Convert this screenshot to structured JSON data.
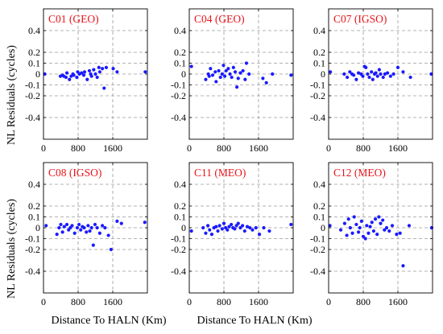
{
  "figure": {
    "ylabel": "NL Residuals (cycles)",
    "xlabel": "Distance To HALN (Km)"
  },
  "style": {
    "title_color": "#e8141a",
    "point_color": "#1a1aff",
    "grid_color": "#9a9a9a",
    "axis_color": "#000000"
  },
  "chart_data": [
    {
      "type": "scatter",
      "title": "C01 (GEO)",
      "xlim": [
        0,
        2400
      ],
      "ylim": [
        -0.6,
        0.6
      ],
      "xticks": [
        0,
        800,
        1600
      ],
      "yticks": [
        0.4,
        0.2,
        0.1,
        0,
        -0.1,
        -0.2,
        -0.4
      ],
      "grid": true,
      "x": [
        30,
        390,
        440,
        470,
        520,
        540,
        600,
        640,
        680,
        700,
        770,
        790,
        830,
        880,
        930,
        950,
        1010,
        1060,
        1090,
        1110,
        1160,
        1200,
        1240,
        1280,
        1300,
        1360,
        1400,
        1450,
        1610,
        1700,
        2350
      ],
      "y": [
        0.0,
        -0.02,
        -0.01,
        -0.02,
        -0.03,
        0.01,
        -0.05,
        -0.02,
        0.0,
        -0.01,
        -0.03,
        0.02,
        0.0,
        0.01,
        -0.01,
        0.02,
        -0.05,
        0.03,
        0.0,
        -0.02,
        0.04,
        0.0,
        -0.03,
        0.06,
        0.02,
        0.05,
        -0.13,
        0.06,
        0.05,
        0.02,
        0.02
      ]
    },
    {
      "type": "scatter",
      "title": "C04 (GEO)",
      "xlim": [
        0,
        2400
      ],
      "ylim": [
        -0.6,
        0.6
      ],
      "xticks": [
        0,
        800,
        1600
      ],
      "yticks": [
        0.4,
        0.2,
        0.1,
        0,
        -0.1,
        -0.2,
        -0.4
      ],
      "grid": true,
      "x": [
        50,
        380,
        440,
        460,
        490,
        540,
        600,
        620,
        680,
        720,
        760,
        790,
        820,
        850,
        900,
        940,
        980,
        1020,
        1060,
        1100,
        1130,
        1180,
        1240,
        1290,
        1320,
        1380,
        1700,
        1780,
        1920,
        2350
      ],
      "y": [
        0.07,
        -0.05,
        0.0,
        -0.02,
        0.05,
        -0.01,
        0.02,
        -0.07,
        0.03,
        -0.03,
        0.0,
        0.08,
        -0.02,
        0.03,
        0.05,
        0.0,
        -0.03,
        0.06,
        0.02,
        -0.12,
        -0.04,
        0.01,
        0.03,
        -0.05,
        0.1,
        0.0,
        -0.04,
        -0.08,
        0.0,
        -0.01
      ]
    },
    {
      "type": "scatter",
      "title": "C07 (IGSO)",
      "xlim": [
        0,
        2400
      ],
      "ylim": [
        -0.6,
        0.6
      ],
      "xticks": [
        0,
        800,
        1600
      ],
      "yticks": [
        0.4,
        0.2,
        0.1,
        0,
        -0.1,
        -0.2,
        -0.4
      ],
      "grid": true,
      "x": [
        40,
        360,
        430,
        490,
        540,
        580,
        640,
        690,
        750,
        790,
        830,
        860,
        900,
        940,
        990,
        1020,
        1060,
        1090,
        1130,
        1170,
        1200,
        1260,
        1300,
        1360,
        1430,
        1500,
        1600,
        1720,
        1890,
        2370
      ],
      "y": [
        0.02,
        0.0,
        -0.03,
        0.02,
        0.0,
        -0.01,
        -0.05,
        0.01,
        0.0,
        -0.02,
        0.07,
        0.06,
        0.0,
        -0.03,
        0.02,
        -0.05,
        0.0,
        0.01,
        -0.02,
        0.04,
        0.0,
        -0.03,
        0.0,
        0.01,
        -0.02,
        0.0,
        0.06,
        0.02,
        -0.03,
        0.0
      ]
    },
    {
      "type": "scatter",
      "title": "C08 (IGSO)",
      "xlim": [
        0,
        2400
      ],
      "ylim": [
        -0.6,
        0.6
      ],
      "xticks": [
        0,
        800,
        1600
      ],
      "yticks": [
        0.4,
        0.2,
        0.1,
        0,
        -0.1,
        -0.2,
        -0.4
      ],
      "grid": true,
      "x": [
        60,
        310,
        360,
        400,
        440,
        480,
        540,
        580,
        620,
        660,
        720,
        780,
        820,
        860,
        900,
        940,
        990,
        1030,
        1070,
        1110,
        1150,
        1190,
        1240,
        1300,
        1360,
        1420,
        1500,
        1560,
        1700,
        1800,
        2340
      ],
      "y": [
        0.02,
        -0.06,
        0.0,
        0.03,
        -0.04,
        0.01,
        0.03,
        -0.02,
        0.0,
        0.02,
        -0.05,
        0.0,
        0.03,
        -0.02,
        0.01,
        0.0,
        -0.04,
        0.02,
        -0.03,
        0.0,
        -0.16,
        0.03,
        0.0,
        -0.05,
        0.02,
        0.0,
        -0.07,
        -0.2,
        0.06,
        0.04,
        0.05
      ]
    },
    {
      "type": "scatter",
      "title": "C11 (MEO)",
      "xlim": [
        0,
        2400
      ],
      "ylim": [
        -0.6,
        0.6
      ],
      "xticks": [
        0,
        800,
        1600
      ],
      "yticks": [
        0.4,
        0.2,
        0.1,
        0,
        -0.1,
        -0.2,
        -0.4
      ],
      "grid": true,
      "x": [
        50,
        320,
        380,
        430,
        470,
        520,
        570,
        620,
        660,
        700,
        760,
        800,
        840,
        880,
        920,
        970,
        1010,
        1050,
        1090,
        1130,
        1180,
        1230,
        1280,
        1340,
        1400,
        1460,
        1540,
        1620,
        1720,
        1850,
        2350
      ],
      "y": [
        -0.03,
        0.0,
        -0.05,
        0.02,
        -0.02,
        -0.06,
        0.0,
        0.01,
        -0.03,
        0.02,
        -0.01,
        0.04,
        0.0,
        -0.02,
        0.01,
        0.03,
        0.0,
        -0.01,
        0.02,
        0.04,
        0.0,
        0.02,
        -0.03,
        0.01,
        0.0,
        -0.02,
        0.0,
        -0.06,
        0.0,
        -0.03,
        0.03
      ]
    },
    {
      "type": "scatter",
      "title": "C12 (MEO)",
      "xlim": [
        0,
        2400
      ],
      "ylim": [
        -0.6,
        0.6
      ],
      "xticks": [
        0,
        800,
        1600
      ],
      "yticks": [
        0.4,
        0.2,
        0.1,
        0,
        -0.1,
        -0.2,
        -0.4
      ],
      "grid": true,
      "x": [
        30,
        280,
        370,
        420,
        460,
        500,
        550,
        590,
        640,
        690,
        720,
        760,
        800,
        850,
        880,
        920,
        960,
        1000,
        1040,
        1080,
        1120,
        1160,
        1200,
        1250,
        1290,
        1340,
        1400,
        1470,
        1570,
        1650,
        1720,
        1860,
        2380
      ],
      "y": [
        0.02,
        -0.02,
        0.04,
        -0.07,
        0.08,
        0.0,
        -0.05,
        0.1,
        0.03,
        -0.04,
        0.0,
        0.06,
        -0.08,
        -0.1,
        0.02,
        -0.05,
        0.01,
        0.05,
        -0.03,
        0.08,
        -0.06,
        0.1,
        0.04,
        0.07,
        -0.02,
        0.0,
        -0.03,
        0.02,
        -0.06,
        -0.05,
        -0.35,
        0.02,
        0.0
      ]
    }
  ]
}
